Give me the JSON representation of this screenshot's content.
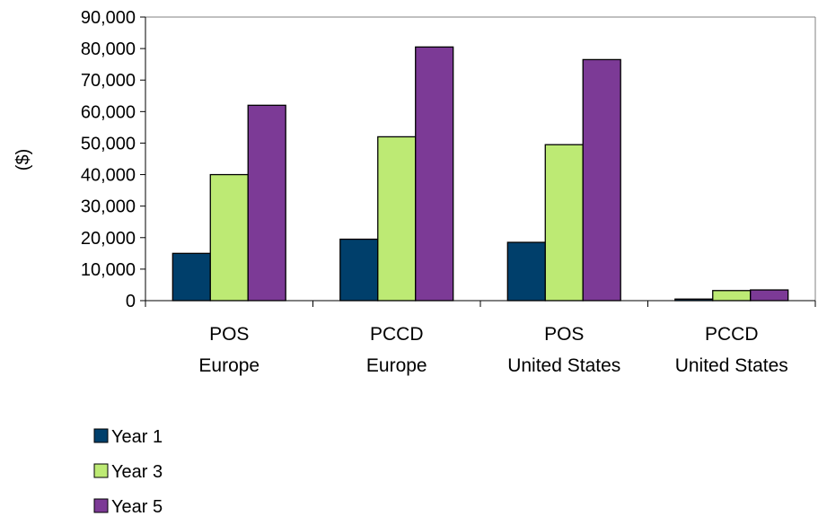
{
  "chart_data": {
    "type": "bar",
    "ylabel": "($)",
    "xlabel": "",
    "categories": [
      [
        "POS",
        "Europe"
      ],
      [
        "PCCD",
        "Europe"
      ],
      [
        "POS",
        "United States"
      ],
      [
        "PCCD",
        "United States"
      ]
    ],
    "series": [
      {
        "name": "Year 1",
        "color": "#003F6B",
        "values": [
          15000,
          19500,
          18500,
          500
        ]
      },
      {
        "name": "Year 3",
        "color": "#BDEA74",
        "values": [
          40000,
          52000,
          49500,
          3200
        ]
      },
      {
        "name": "Year 5",
        "color": "#7C3A96",
        "values": [
          62000,
          80500,
          76500,
          3400
        ]
      }
    ],
    "ylim": [
      0,
      90000
    ],
    "yticks": [
      "0",
      "10,000",
      "20,000",
      "30,000",
      "40,000",
      "50,000",
      "60,000",
      "70,000",
      "80,000",
      "90,000"
    ],
    "grid": false,
    "legend_position": "bottom-left"
  }
}
